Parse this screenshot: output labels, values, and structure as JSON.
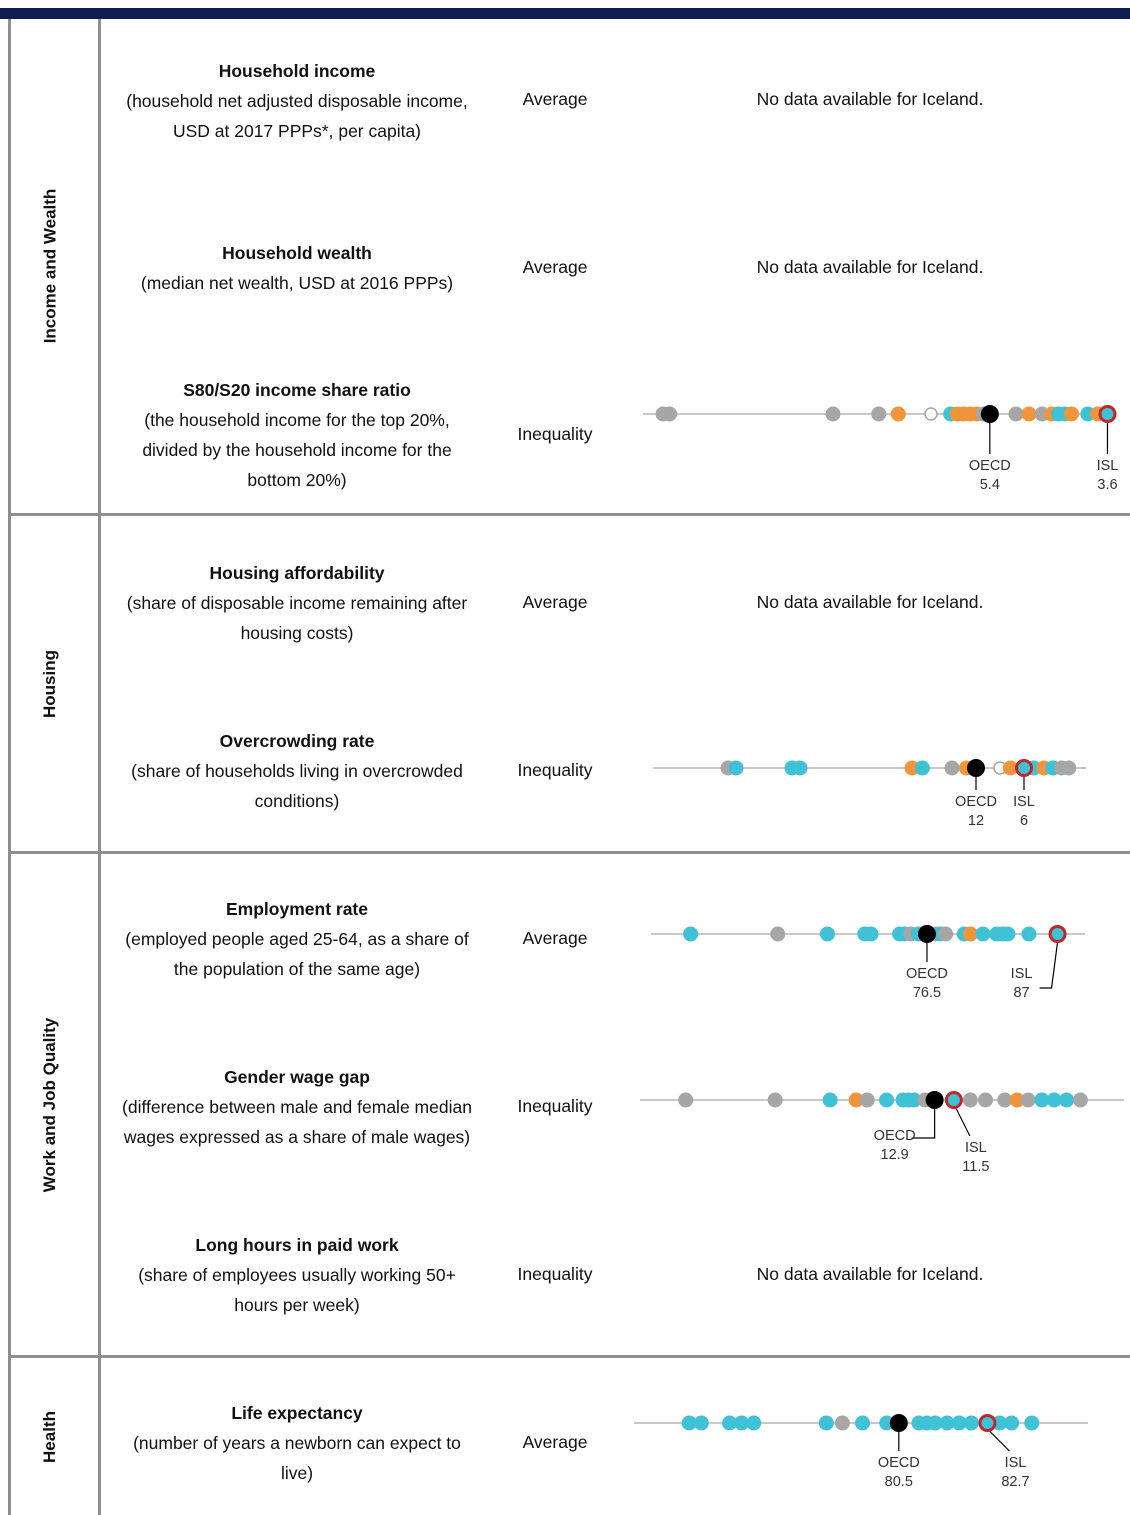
{
  "colors": {
    "header_bar": "#0d1f4f",
    "gray": "#a6a6a6",
    "teal": "#3fc1d6",
    "orange": "#f0953b",
    "oecd": "#000000",
    "isl_ring": "#c0272d"
  },
  "sections": [
    {
      "label": "Income and Wealth"
    },
    {
      "label": "Housing"
    },
    {
      "label": "Work and Job Quality"
    },
    {
      "label": "Health"
    }
  ],
  "no_data_text": "No data available for Iceland.",
  "indicators": [
    {
      "section": 0,
      "title": "Household income",
      "desc": "(household net adjusted disposable income,\nUSD at 2017 PPPs*, per capita)",
      "kind": "Average",
      "has_data": false
    },
    {
      "section": 0,
      "title": "Household wealth",
      "desc": "(median net wealth, USD at 2016 PPPs)",
      "kind": "Average",
      "has_data": false
    },
    {
      "section": 0,
      "title": "S80/S20 income share ratio",
      "desc": "(the household income for the top 20%,\ndivided by the household income for the\nbottom 20%)",
      "kind": "Inequality",
      "has_data": true
    },
    {
      "section": 1,
      "title": "Housing affordability",
      "desc": "(share of disposable income remaining after\nhousing costs)",
      "kind": "Average",
      "has_data": false
    },
    {
      "section": 1,
      "title": "Overcrowding rate",
      "desc": "(share of households living in overcrowded\nconditions)",
      "kind": "Inequality",
      "has_data": true
    },
    {
      "section": 2,
      "title": "Employment rate",
      "desc": "(employed people aged 25-64, as a share of\nthe population of the same age)",
      "kind": "Average",
      "has_data": true
    },
    {
      "section": 2,
      "title": "Gender wage gap",
      "desc": "(difference between male and female median\nwages expressed as a share of male wages)",
      "kind": "Inequality",
      "has_data": true
    },
    {
      "section": 2,
      "title": "Long hours in paid work",
      "desc": "(share of employees usually working 50+\nhours per week)",
      "kind": "Inequality",
      "has_data": false
    },
    {
      "section": 3,
      "title": "Life expectancy",
      "desc": "(number of years a newborn can expect to\nlive)",
      "kind": "Average",
      "has_data": true
    }
  ],
  "chart_data": [
    {
      "type": "scatter",
      "indicator": "S80/S20 income share ratio",
      "direction": "reversed (lower values to the right)",
      "xlim": [
        10.6,
        3.5
      ],
      "oecd": {
        "label": "OECD",
        "value_label": "5.4",
        "value": 5.4
      },
      "isl": {
        "label": "ISL",
        "value_label": "3.6",
        "value": 3.6
      },
      "points": [
        {
          "v": 10.4,
          "c": "gray"
        },
        {
          "v": 10.3,
          "c": "gray"
        },
        {
          "v": 7.8,
          "c": "gray"
        },
        {
          "v": 7.1,
          "c": "gray"
        },
        {
          "v": 6.8,
          "c": "orange"
        },
        {
          "v": 6.3,
          "c": "hollow"
        },
        {
          "v": 6.0,
          "c": "teal"
        },
        {
          "v": 5.9,
          "c": "orange"
        },
        {
          "v": 5.8,
          "c": "orange"
        },
        {
          "v": 5.7,
          "c": "orange"
        },
        {
          "v": 5.6,
          "c": "orange"
        },
        {
          "v": 5.5,
          "c": "gray"
        },
        {
          "v": 5.0,
          "c": "gray"
        },
        {
          "v": 4.8,
          "c": "orange"
        },
        {
          "v": 4.6,
          "c": "gray"
        },
        {
          "v": 4.45,
          "c": "orange"
        },
        {
          "v": 4.35,
          "c": "teal"
        },
        {
          "v": 4.25,
          "c": "teal"
        },
        {
          "v": 4.15,
          "c": "orange"
        },
        {
          "v": 3.9,
          "c": "teal"
        },
        {
          "v": 3.75,
          "c": "orange"
        }
      ]
    },
    {
      "type": "scatter",
      "indicator": "Overcrowding rate",
      "direction": "reversed (lower values to the right)",
      "xlim": [
        49,
        0
      ],
      "oecd": {
        "label": "OECD",
        "value_label": "12",
        "value": 12
      },
      "isl": {
        "label": "ISL",
        "value_label": "6",
        "value": 6
      },
      "points": [
        {
          "v": 43,
          "c": "gray"
        },
        {
          "v": 42,
          "c": "teal"
        },
        {
          "v": 35,
          "c": "teal"
        },
        {
          "v": 34,
          "c": "teal"
        },
        {
          "v": 20,
          "c": "orange"
        },
        {
          "v": 18.7,
          "c": "teal"
        },
        {
          "v": 15,
          "c": "gray"
        },
        {
          "v": 13.2,
          "c": "orange"
        },
        {
          "v": 9,
          "c": "hollow"
        },
        {
          "v": 7.7,
          "c": "orange"
        },
        {
          "v": 4.8,
          "c": "teal"
        },
        {
          "v": 3.5,
          "c": "orange"
        },
        {
          "v": 2.4,
          "c": "teal"
        },
        {
          "v": 1.3,
          "c": "gray"
        },
        {
          "v": 0.4,
          "c": "gray"
        }
      ]
    },
    {
      "type": "scatter",
      "indicator": "Employment rate",
      "direction": "normal (higher values to the right)",
      "xlim": [
        56,
        88
      ],
      "oecd": {
        "label": "OECD",
        "value_label": "76.5",
        "value": 76.5
      },
      "isl": {
        "label": "ISL",
        "value_label": "87",
        "value": 87
      },
      "points": [
        {
          "v": 57.5,
          "c": "teal"
        },
        {
          "v": 64.5,
          "c": "gray"
        },
        {
          "v": 68.5,
          "c": "teal"
        },
        {
          "v": 71.5,
          "c": "teal"
        },
        {
          "v": 72,
          "c": "teal"
        },
        {
          "v": 74.3,
          "c": "teal"
        },
        {
          "v": 74.7,
          "c": "teal"
        },
        {
          "v": 75.2,
          "c": "gray"
        },
        {
          "v": 75.8,
          "c": "teal"
        },
        {
          "v": 77.2,
          "c": "gray"
        },
        {
          "v": 77.6,
          "c": "teal"
        },
        {
          "v": 78,
          "c": "gray"
        },
        {
          "v": 79.5,
          "c": "teal"
        },
        {
          "v": 80,
          "c": "orange"
        },
        {
          "v": 81,
          "c": "teal"
        },
        {
          "v": 82.1,
          "c": "teal"
        },
        {
          "v": 82.6,
          "c": "teal"
        },
        {
          "v": 83,
          "c": "teal"
        },
        {
          "v": 84.7,
          "c": "teal"
        }
      ]
    },
    {
      "type": "scatter",
      "indicator": "Gender wage gap",
      "direction": "reversed (lower values to the right)",
      "xlim": [
        32,
        0
      ],
      "oecd": {
        "label": "OECD",
        "value_label": "12.9",
        "value": 12.9
      },
      "isl": {
        "label": "ISL",
        "value_label": "11.5",
        "value": 11.5
      },
      "points": [
        {
          "v": 31,
          "c": "gray"
        },
        {
          "v": 24.5,
          "c": "gray"
        },
        {
          "v": 20.5,
          "c": "teal"
        },
        {
          "v": 18.6,
          "c": "orange"
        },
        {
          "v": 17.8,
          "c": "gray"
        },
        {
          "v": 16.4,
          "c": "teal"
        },
        {
          "v": 15.2,
          "c": "teal"
        },
        {
          "v": 14.8,
          "c": "teal"
        },
        {
          "v": 14.4,
          "c": "teal"
        },
        {
          "v": 13.6,
          "c": "gray"
        },
        {
          "v": 10.3,
          "c": "gray"
        },
        {
          "v": 9.2,
          "c": "gray"
        },
        {
          "v": 7.8,
          "c": "gray"
        },
        {
          "v": 6.9,
          "c": "orange"
        },
        {
          "v": 6.1,
          "c": "gray"
        },
        {
          "v": 5.1,
          "c": "teal"
        },
        {
          "v": 4.2,
          "c": "teal"
        },
        {
          "v": 3.3,
          "c": "teal"
        },
        {
          "v": 2.3,
          "c": "gray"
        }
      ]
    },
    {
      "type": "scatter",
      "indicator": "Life expectancy",
      "direction": "normal (higher values to the right)",
      "xlim": [
        74.5,
        84.5
      ],
      "oecd": {
        "label": "OECD",
        "value_label": "80.5",
        "value": 80.5
      },
      "isl": {
        "label": "ISL",
        "value_label": "82.7",
        "value": 82.7
      },
      "points": [
        {
          "v": 75.3,
          "c": "teal"
        },
        {
          "v": 75.6,
          "c": "teal"
        },
        {
          "v": 76.3,
          "c": "teal"
        },
        {
          "v": 76.6,
          "c": "teal"
        },
        {
          "v": 76.9,
          "c": "teal"
        },
        {
          "v": 78.7,
          "c": "teal"
        },
        {
          "v": 79.1,
          "c": "gray"
        },
        {
          "v": 79.6,
          "c": "teal"
        },
        {
          "v": 80.2,
          "c": "teal"
        },
        {
          "v": 81.0,
          "c": "teal"
        },
        {
          "v": 81.2,
          "c": "teal"
        },
        {
          "v": 81.4,
          "c": "teal"
        },
        {
          "v": 81.7,
          "c": "teal"
        },
        {
          "v": 82.0,
          "c": "teal"
        },
        {
          "v": 82.3,
          "c": "teal"
        },
        {
          "v": 83.0,
          "c": "teal"
        },
        {
          "v": 83.3,
          "c": "teal"
        },
        {
          "v": 83.8,
          "c": "teal"
        }
      ]
    }
  ]
}
